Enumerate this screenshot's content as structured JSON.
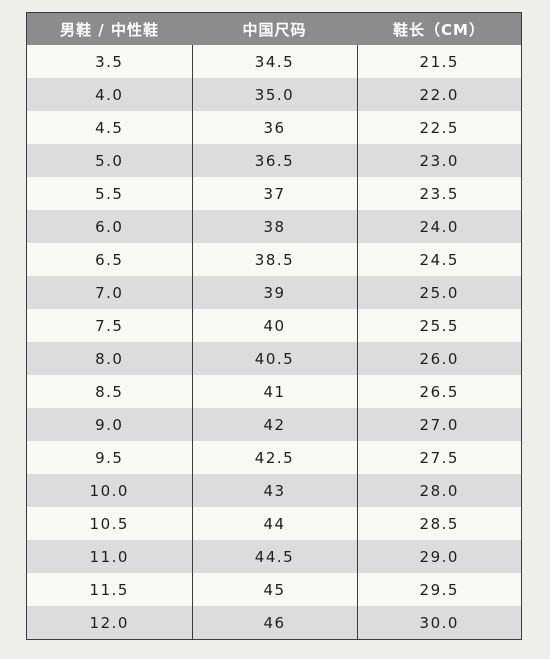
{
  "table": {
    "headers": [
      "男鞋 / 中性鞋",
      "中国尺码",
      "鞋长（CM）"
    ],
    "rows": [
      [
        "3.5",
        "34.5",
        "21.5"
      ],
      [
        "4.0",
        "35.0",
        "22.0"
      ],
      [
        "4.5",
        "36",
        "22.5"
      ],
      [
        "5.0",
        "36.5",
        "23.0"
      ],
      [
        "5.5",
        "37",
        "23.5"
      ],
      [
        "6.0",
        "38",
        "24.0"
      ],
      [
        "6.5",
        "38.5",
        "24.5"
      ],
      [
        "7.0",
        "39",
        "25.0"
      ],
      [
        "7.5",
        "40",
        "25.5"
      ],
      [
        "8.0",
        "40.5",
        "26.0"
      ],
      [
        "8.5",
        "41",
        "26.5"
      ],
      [
        "9.0",
        "42",
        "27.0"
      ],
      [
        "9.5",
        "42.5",
        "27.5"
      ],
      [
        "10.0",
        "43",
        "28.0"
      ],
      [
        "10.5",
        "44",
        "28.5"
      ],
      [
        "11.0",
        "44.5",
        "29.0"
      ],
      [
        "11.5",
        "45",
        "29.5"
      ],
      [
        "12.0",
        "46",
        "30.0"
      ]
    ]
  },
  "colors": {
    "header_bg": "#8c8c8c",
    "stripe_bg": "#dcdcdc",
    "row_bg": "#f8f8f5",
    "border": "#3c3c3c"
  }
}
